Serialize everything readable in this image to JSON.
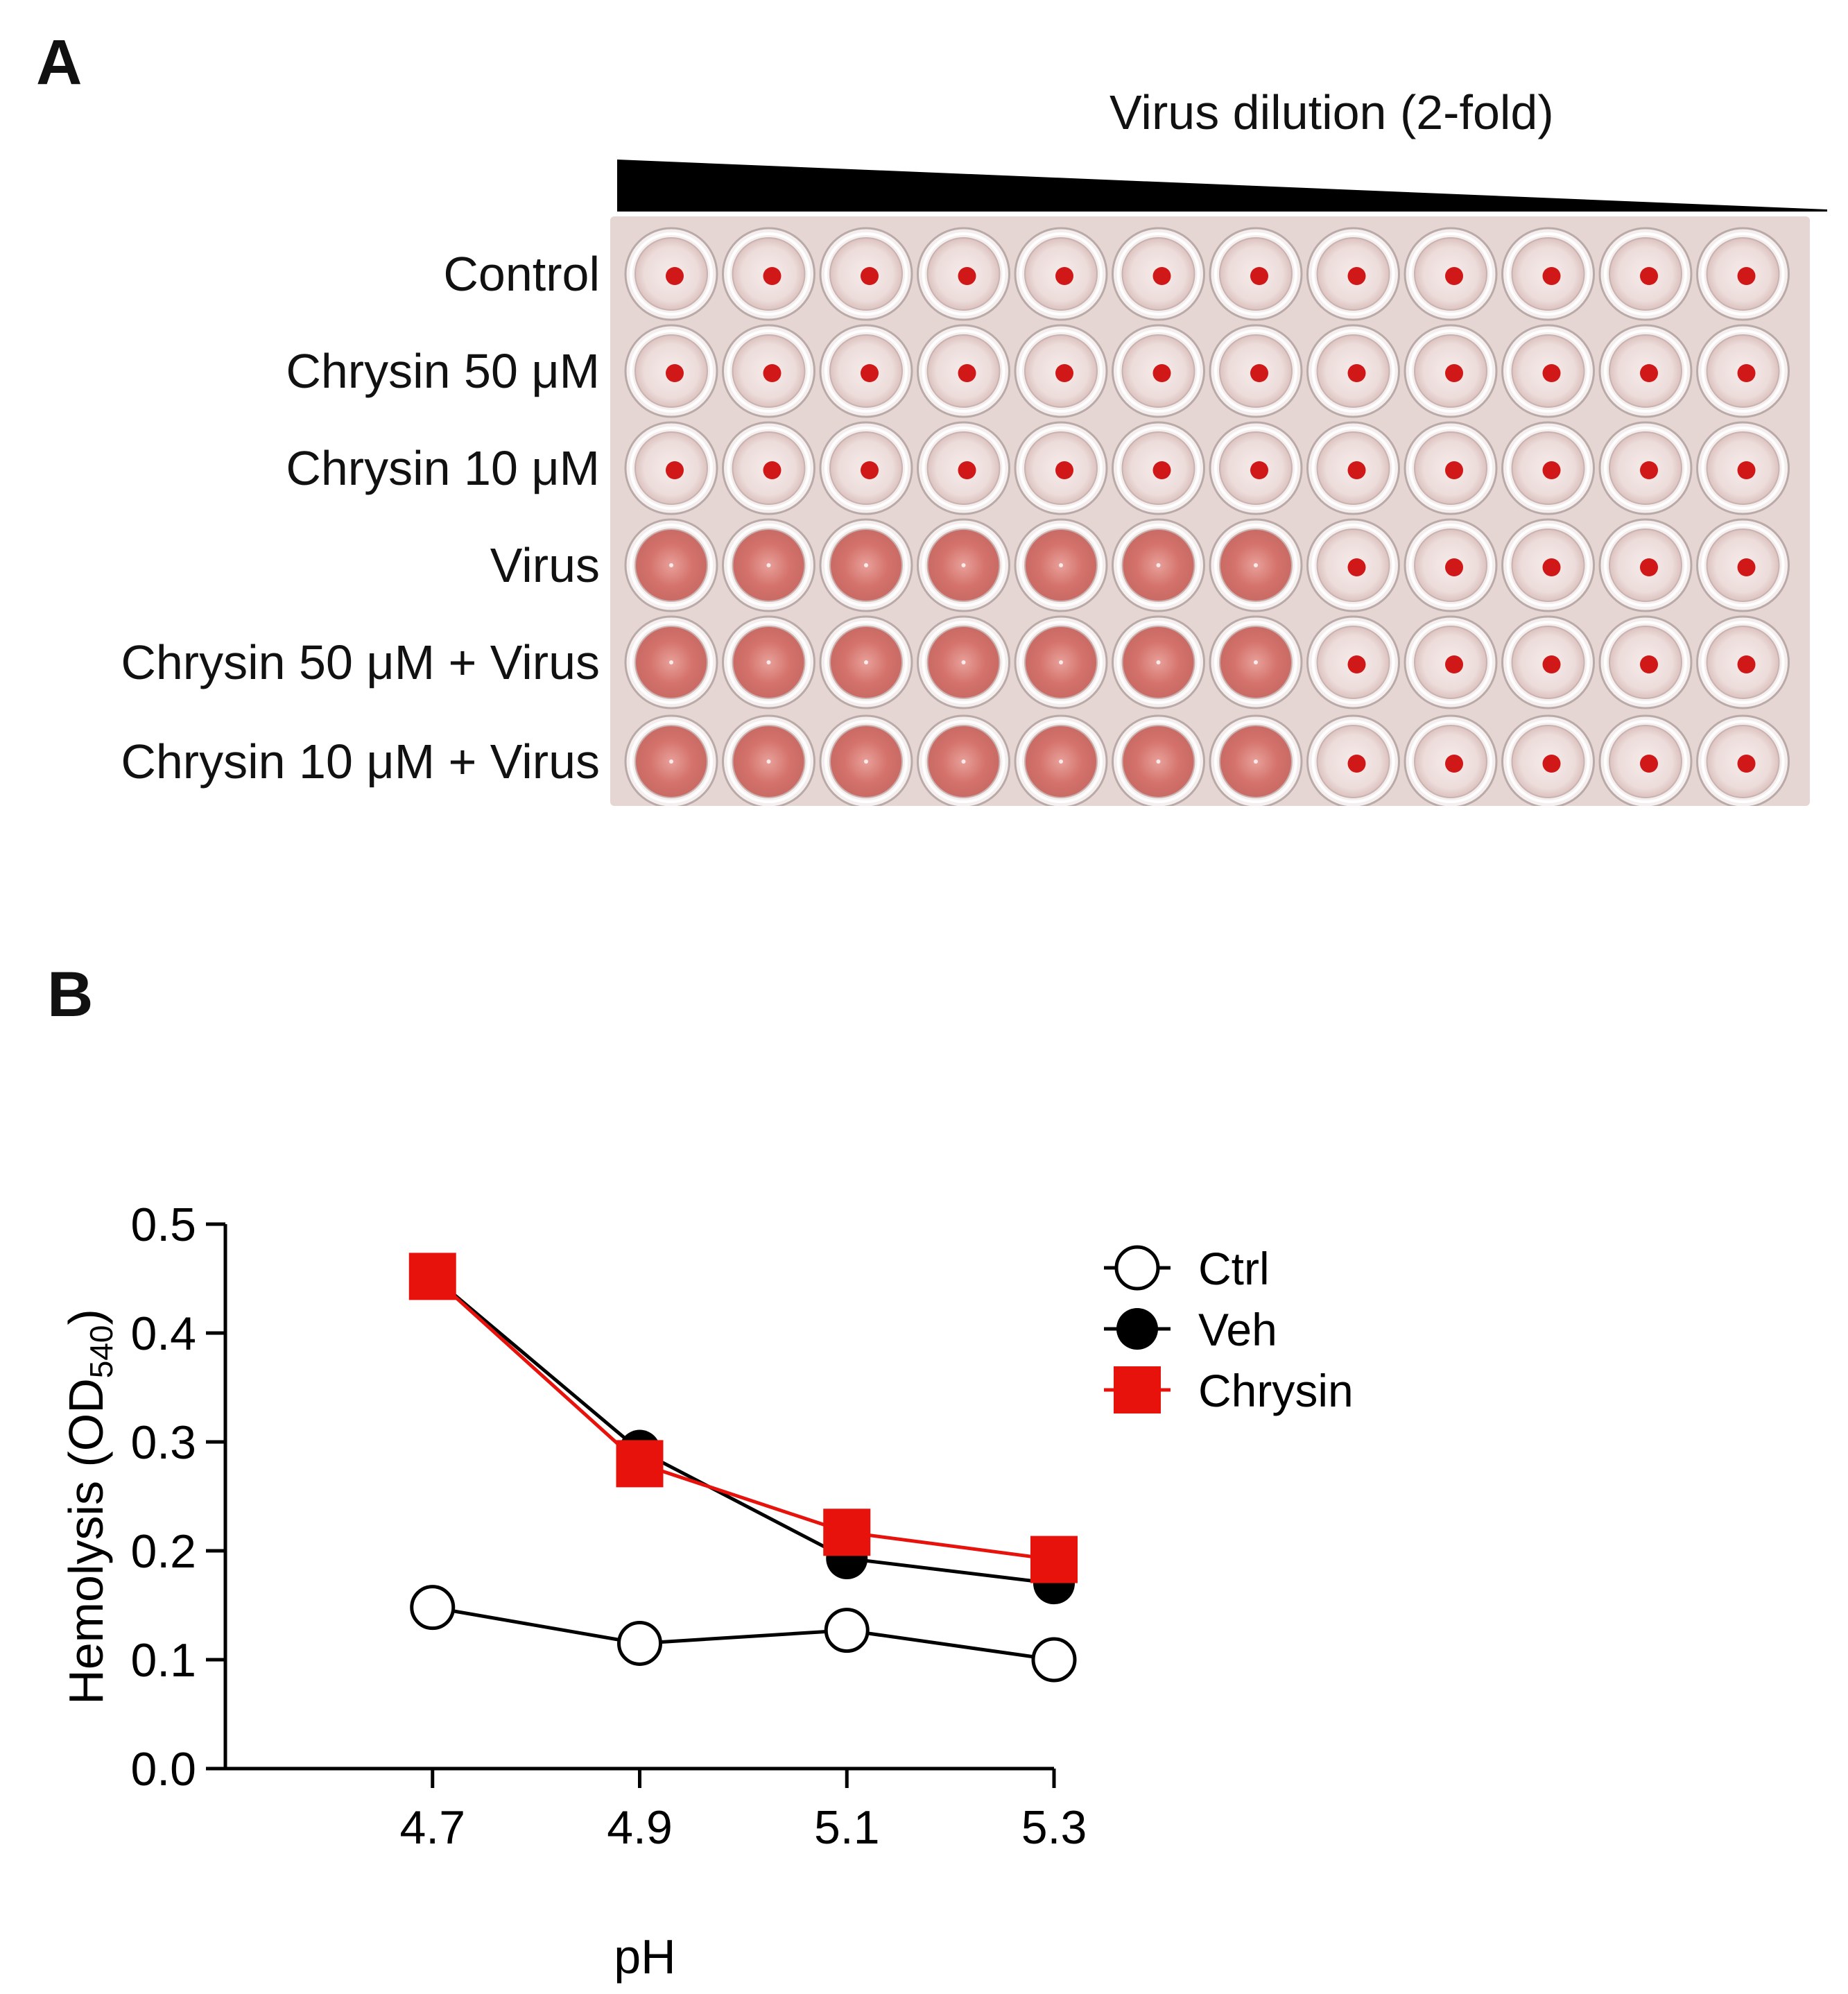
{
  "panel_a": {
    "letter": "A",
    "dilution_label": "Virus dilution (2-fold)",
    "rows": [
      {
        "label": "Control",
        "wells": [
          "button",
          "button",
          "button",
          "button",
          "button",
          "button",
          "button",
          "button",
          "button",
          "button",
          "button",
          "button"
        ]
      },
      {
        "label": "Chrysin 50 μM",
        "wells": [
          "button",
          "button",
          "button",
          "button",
          "button",
          "button",
          "button",
          "button",
          "button",
          "button",
          "button",
          "button"
        ]
      },
      {
        "label": "Chrysin 10 μM",
        "wells": [
          "button",
          "button",
          "button",
          "button",
          "button",
          "button",
          "button",
          "button",
          "button",
          "button",
          "button",
          "button"
        ]
      },
      {
        "label": "Virus",
        "wells": [
          "mat",
          "mat",
          "mat",
          "mat",
          "mat",
          "mat",
          "mat",
          "button",
          "button",
          "button",
          "button",
          "button"
        ]
      },
      {
        "label": "Chrysin 50 μM + Virus",
        "wells": [
          "mat",
          "mat",
          "mat",
          "mat",
          "mat",
          "mat",
          "mat",
          "button",
          "button",
          "button",
          "button",
          "button"
        ]
      },
      {
        "label": "Chrysin 10 μM + Virus",
        "wells": [
          "mat",
          "mat",
          "mat",
          "mat",
          "mat",
          "mat",
          "mat",
          "button",
          "button",
          "button",
          "button",
          "button"
        ]
      }
    ]
  },
  "panel_b": {
    "letter": "B"
  },
  "chart_data": {
    "type": "line",
    "title": "",
    "xlabel": "pH",
    "ylabel_main": "Hemolysis (OD",
    "ylabel_sub": "540",
    "ylabel_close": ")",
    "categories": [
      "4.7",
      "4.9",
      "5.1",
      "5.3"
    ],
    "x": [
      4.7,
      4.9,
      5.1,
      5.3
    ],
    "xlim": [
      4.5,
      5.3
    ],
    "ylim": [
      0.0,
      0.5
    ],
    "yticks": [
      "0.0",
      "0.1",
      "0.2",
      "0.3",
      "0.4",
      "0.5"
    ],
    "legend_position": "top-right",
    "series": [
      {
        "name": "Ctrl",
        "values": [
          0.148,
          0.115,
          0.127,
          0.1
        ],
        "color": "#000000",
        "marker": "open-circle"
      },
      {
        "name": "Veh",
        "values": [
          0.452,
          0.292,
          0.193,
          0.17
        ],
        "color": "#000000",
        "marker": "filled-circle"
      },
      {
        "name": "Chrysin",
        "values": [
          0.452,
          0.28,
          0.217,
          0.192
        ],
        "color": "#e8120c",
        "marker": "square"
      }
    ]
  }
}
